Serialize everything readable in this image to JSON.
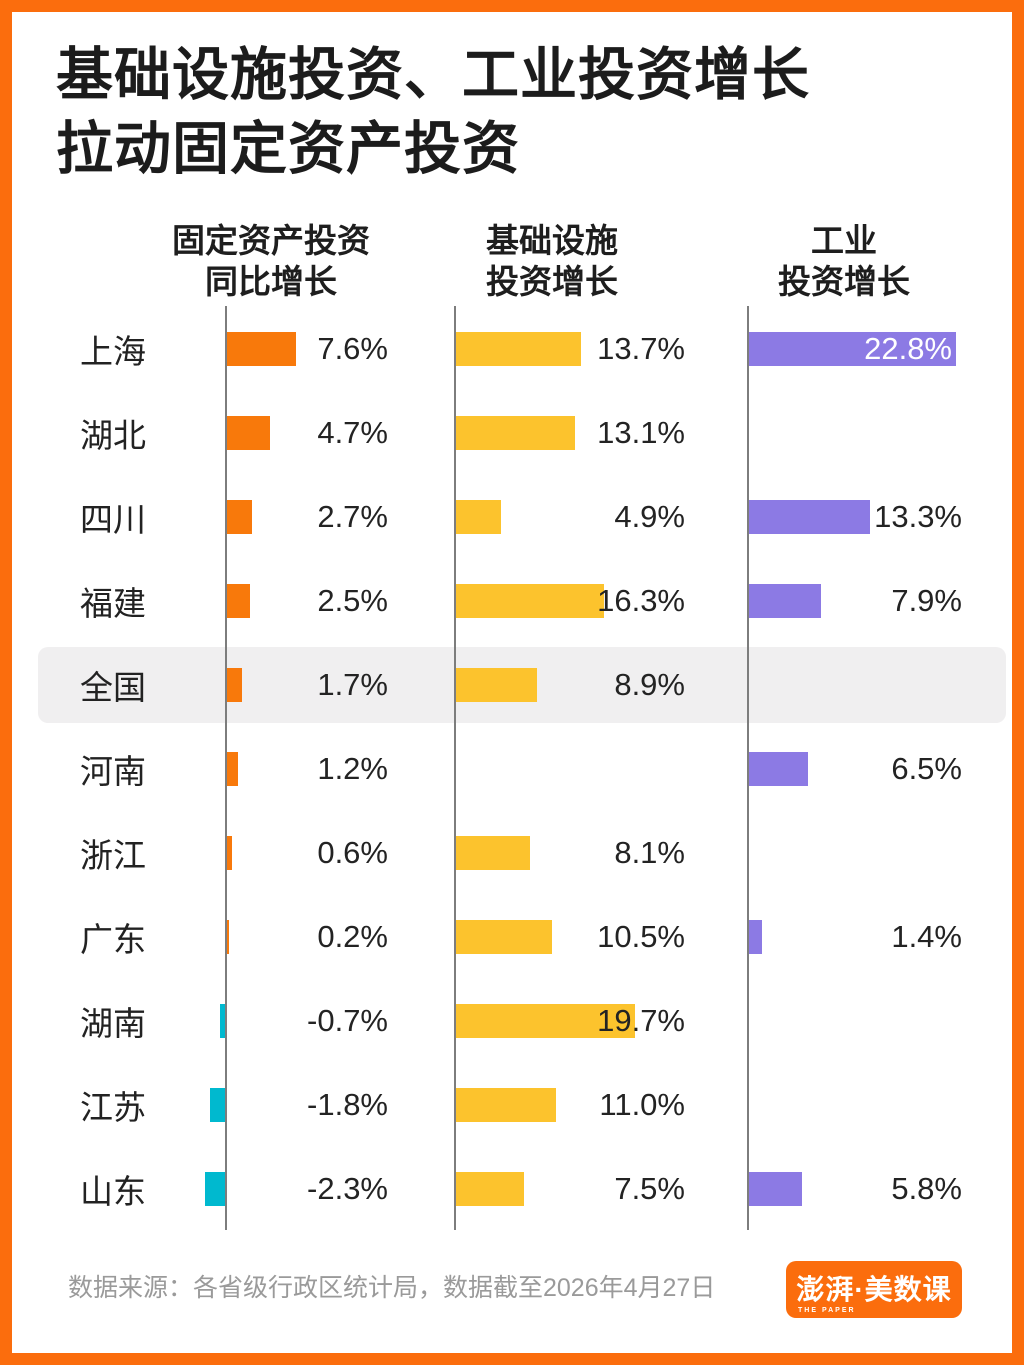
{
  "title": {
    "line1": "基础设施投资、工业投资增长",
    "line2": "拉动固定资产投资"
  },
  "columns": [
    {
      "key": "fixed",
      "header": [
        "固定资产投资",
        "同比增长"
      ]
    },
    {
      "key": "infra",
      "header": [
        "基础设施",
        "投资增长"
      ]
    },
    {
      "key": "industry",
      "header": [
        "工业",
        "投资增长"
      ]
    }
  ],
  "rows": [
    {
      "region": "上海",
      "fixed": {
        "v": 7.6,
        "label": "7.6%"
      },
      "infra": {
        "v": 13.7,
        "label": "13.7%"
      },
      "industry": {
        "v": 22.8,
        "label": "22.8%",
        "inside": true
      }
    },
    {
      "region": "湖北",
      "fixed": {
        "v": 4.7,
        "label": "4.7%"
      },
      "infra": {
        "v": 13.1,
        "label": "13.1%"
      },
      "industry": null
    },
    {
      "region": "四川",
      "fixed": {
        "v": 2.7,
        "label": "2.7%"
      },
      "infra": {
        "v": 4.9,
        "label": "4.9%"
      },
      "industry": {
        "v": 13.3,
        "label": "13.3%"
      }
    },
    {
      "region": "福建",
      "fixed": {
        "v": 2.5,
        "label": "2.5%"
      },
      "infra": {
        "v": 16.3,
        "label": "16.3%"
      },
      "industry": {
        "v": 7.9,
        "label": "7.9%"
      }
    },
    {
      "region": "全国",
      "highlight": true,
      "fixed": {
        "v": 1.7,
        "label": "1.7%"
      },
      "infra": {
        "v": 8.9,
        "label": "8.9%"
      },
      "industry": null
    },
    {
      "region": "河南",
      "fixed": {
        "v": 1.2,
        "label": "1.2%"
      },
      "infra": null,
      "industry": {
        "v": 6.5,
        "label": "6.5%"
      }
    },
    {
      "region": "浙江",
      "fixed": {
        "v": 0.6,
        "label": "0.6%"
      },
      "infra": {
        "v": 8.1,
        "label": "8.1%"
      },
      "industry": null
    },
    {
      "region": "广东",
      "fixed": {
        "v": 0.2,
        "label": "0.2%"
      },
      "infra": {
        "v": 10.5,
        "label": "10.5%"
      },
      "industry": {
        "v": 1.4,
        "label": "1.4%"
      }
    },
    {
      "region": "湖南",
      "fixed": {
        "v": -0.7,
        "label": "-0.7%"
      },
      "infra": {
        "v": 19.7,
        "label": "19.7%"
      },
      "industry": null
    },
    {
      "region": "江苏",
      "fixed": {
        "v": -1.8,
        "label": "-1.8%"
      },
      "infra": {
        "v": 11.0,
        "label": "11.0%"
      },
      "industry": null
    },
    {
      "region": "山东",
      "fixed": {
        "v": -2.3,
        "label": "-2.3%"
      },
      "infra": {
        "v": 7.5,
        "label": "7.5%"
      },
      "industry": {
        "v": 5.8,
        "label": "5.8%"
      }
    }
  ],
  "colors": {
    "frame": "#FB6D0D",
    "fixed_positive": "#F8790B",
    "fixed_negative": "#00B9CF",
    "infra": "#FCC32D",
    "industry": "#8C7AE4",
    "axis_line": "#7D7D7D",
    "highlight_row_bg": "#F0EFF0"
  },
  "footer": {
    "source": "数据来源：各省级行政区统计局，数据截至2026年4月27日"
  },
  "logo": {
    "main": "澎湃·美数课",
    "sub": "THE PAPER"
  },
  "chart_data": {
    "type": "bar",
    "orientation": "horizontal",
    "title": "基础设施投资、工业投资增长拉动固定资产投资",
    "unit": "%",
    "categories": [
      "上海",
      "湖北",
      "四川",
      "福建",
      "全国",
      "河南",
      "浙江",
      "广东",
      "湖南",
      "江苏",
      "山东"
    ],
    "series": [
      {
        "name": "固定资产投资同比增长",
        "values": [
          7.6,
          4.7,
          2.7,
          2.5,
          1.7,
          1.2,
          0.6,
          0.2,
          -0.7,
          -1.8,
          -2.3
        ]
      },
      {
        "name": "基础设施投资增长",
        "values": [
          13.7,
          13.1,
          4.9,
          16.3,
          8.9,
          null,
          8.1,
          10.5,
          19.7,
          11.0,
          7.5
        ]
      },
      {
        "name": "工业投资增长",
        "values": [
          22.8,
          null,
          13.3,
          7.9,
          null,
          6.5,
          null,
          1.4,
          null,
          null,
          5.8
        ]
      }
    ],
    "highlighted_category": "全国",
    "grid": "vertical baseline per column group",
    "legend_position": "column headers",
    "source_note": "数据来源：各省级行政区统计局，数据截至2026年4月27日"
  }
}
